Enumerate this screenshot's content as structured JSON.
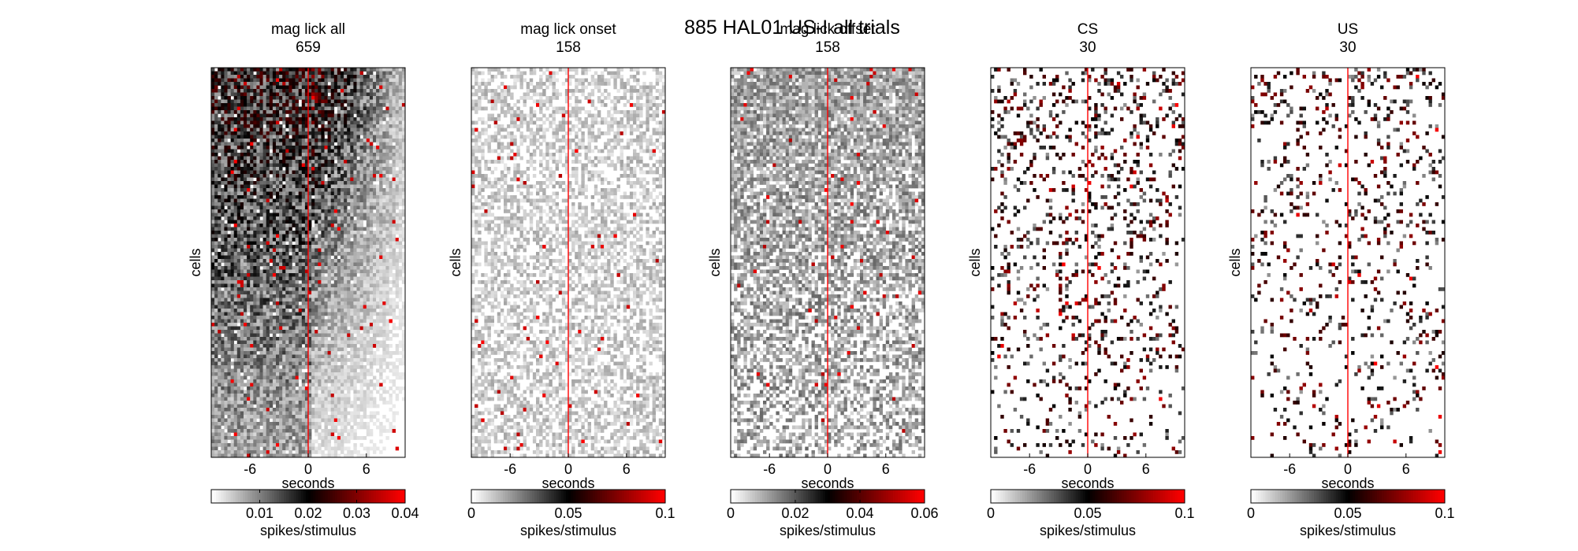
{
  "figure": {
    "suptitle": "885 HAL01 US-I all trials"
  },
  "chart_data": [
    {
      "type": "heatmap",
      "title": "mag lick  all",
      "subtitle": "659",
      "xlabel": "seconds",
      "ylabel": "cells",
      "xticks": [
        "-6",
        "0",
        "6"
      ],
      "xlim": [
        -10,
        10
      ],
      "event_line_x": 0,
      "colorbar": {
        "label": "spikes/stimulus",
        "range": [
          0,
          0.04
        ],
        "ticks": [
          "0.01",
          "0.02",
          "0.03",
          "0.04"
        ]
      },
      "colormap": [
        "#ffffff",
        "#000000",
        "#ff0000"
      ],
      "density": 0.97,
      "intensity": 0.55,
      "decay": "post"
    },
    {
      "type": "heatmap",
      "title": "mag lick  onset",
      "subtitle": "158",
      "xlabel": "seconds",
      "ylabel": "cells",
      "xticks": [
        "-6",
        "0",
        "6"
      ],
      "xlim": [
        -10,
        10
      ],
      "event_line_x": 0,
      "colorbar": {
        "label": "spikes/stimulus",
        "range": [
          0,
          0.1
        ],
        "ticks": [
          "0",
          "0.05",
          "0.1"
        ]
      },
      "colormap": [
        "#ffffff",
        "#000000",
        "#ff0000"
      ],
      "density": 0.55,
      "intensity": 0.18,
      "decay": "none"
    },
    {
      "type": "heatmap",
      "title": "mag lick  offset",
      "subtitle": "158",
      "xlabel": "seconds",
      "ylabel": "cells",
      "xticks": [
        "-6",
        "0",
        "6"
      ],
      "xlim": [
        -10,
        10
      ],
      "event_line_x": 0,
      "colorbar": {
        "label": "spikes/stimulus",
        "range": [
          0,
          0.06
        ],
        "ticks": [
          "0",
          "0.02",
          "0.04",
          "0.06"
        ]
      },
      "colormap": [
        "#ffffff",
        "#000000",
        "#ff0000"
      ],
      "density": 0.7,
      "intensity": 0.3,
      "decay": "top"
    },
    {
      "type": "heatmap",
      "title": "CS",
      "subtitle": "30",
      "xlabel": "seconds",
      "ylabel": "cells",
      "xticks": [
        "-6",
        "0",
        "6"
      ],
      "xlim": [
        -10,
        10
      ],
      "event_line_x": 0,
      "colorbar": {
        "label": "spikes/stimulus",
        "range": [
          0,
          0.1
        ],
        "ticks": [
          "0",
          "0.05",
          "0.1"
        ]
      },
      "colormap": [
        "#ffffff",
        "#000000",
        "#ff0000"
      ],
      "density": 0.16,
      "intensity": 0.8,
      "decay": "top"
    },
    {
      "type": "heatmap",
      "title": "US",
      "subtitle": "30",
      "xlabel": "seconds",
      "ylabel": "cells",
      "xticks": [
        "-6",
        "0",
        "6"
      ],
      "xlim": [
        -10,
        10
      ],
      "event_line_x": 0,
      "colorbar": {
        "label": "spikes/stimulus",
        "range": [
          0,
          0.1
        ],
        "ticks": [
          "0",
          "0.05",
          "0.1"
        ]
      },
      "colormap": [
        "#ffffff",
        "#000000",
        "#ff0000"
      ],
      "density": 0.12,
      "intensity": 0.8,
      "decay": "top"
    }
  ]
}
